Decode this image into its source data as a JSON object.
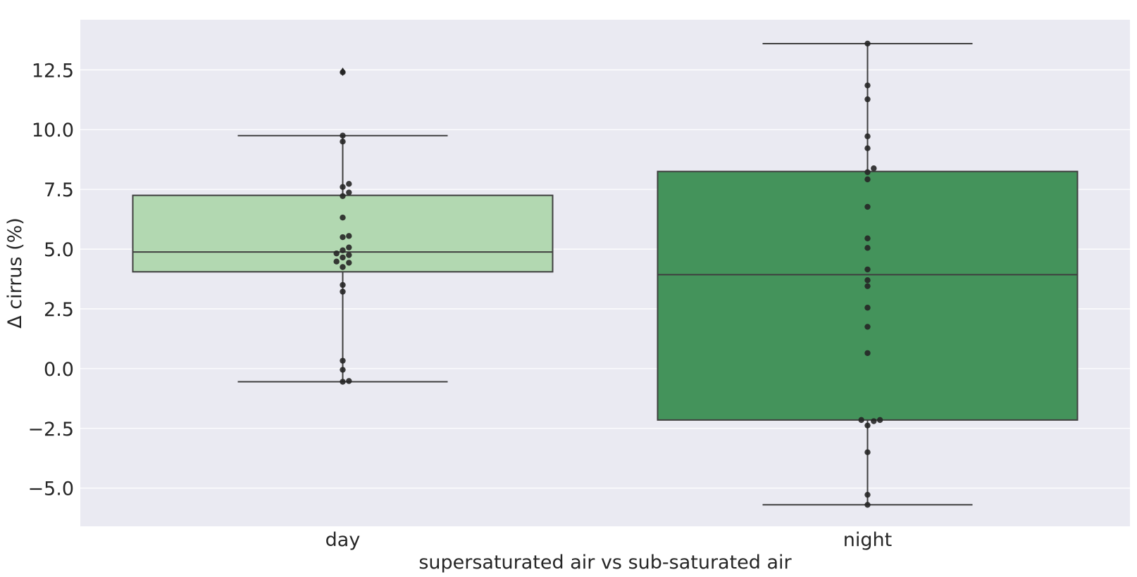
{
  "chart_data": {
    "type": "box",
    "title": "",
    "xlabel": "supersaturated air vs sub-saturated air",
    "ylabel": "Δ cirrus (%)",
    "ylim": [
      -6.6,
      14.6
    ],
    "yticks": [
      -5.0,
      -2.5,
      0.0,
      2.5,
      5.0,
      7.5,
      10.0,
      12.5
    ],
    "ytick_labels": [
      "−5.0",
      "−2.5",
      "0.0",
      "2.5",
      "5.0",
      "7.5",
      "10.0",
      "12.5"
    ],
    "grid": true,
    "categories": [
      "day",
      "night"
    ],
    "boxes": [
      {
        "category": "day",
        "whisker_low": -0.55,
        "q1": 4.05,
        "median": 4.88,
        "q3": 7.25,
        "whisker_high": 9.75,
        "outliers": [
          12.42
        ],
        "color": "#b2d8b1"
      },
      {
        "category": "night",
        "whisker_low": -5.7,
        "q1": -2.15,
        "median": 3.93,
        "q3": 8.25,
        "whisker_high": 13.6,
        "outliers": [],
        "color": "#44935b"
      }
    ],
    "points": [
      {
        "category": "day",
        "values": [
          12.4,
          9.75,
          9.5,
          7.73,
          7.37,
          7.6,
          7.22,
          6.32,
          5.55,
          5.5,
          5.07,
          4.95,
          4.82,
          4.75,
          4.65,
          4.48,
          4.43,
          4.25,
          3.5,
          3.22,
          0.33,
          -0.05,
          -0.52,
          -0.55
        ]
      },
      {
        "category": "night",
        "values": [
          13.6,
          11.85,
          11.27,
          9.72,
          9.22,
          8.38,
          8.22,
          7.92,
          6.77,
          5.45,
          5.05,
          4.15,
          3.7,
          3.45,
          2.55,
          1.75,
          0.65,
          -2.15,
          -2.15,
          -2.2,
          -2.38,
          -3.5,
          -5.28,
          -5.7
        ]
      }
    ],
    "colors": {
      "background": "#eaeaf2",
      "grid": "#ffffff",
      "line": "#3f3f3f",
      "point": "#262626"
    }
  }
}
